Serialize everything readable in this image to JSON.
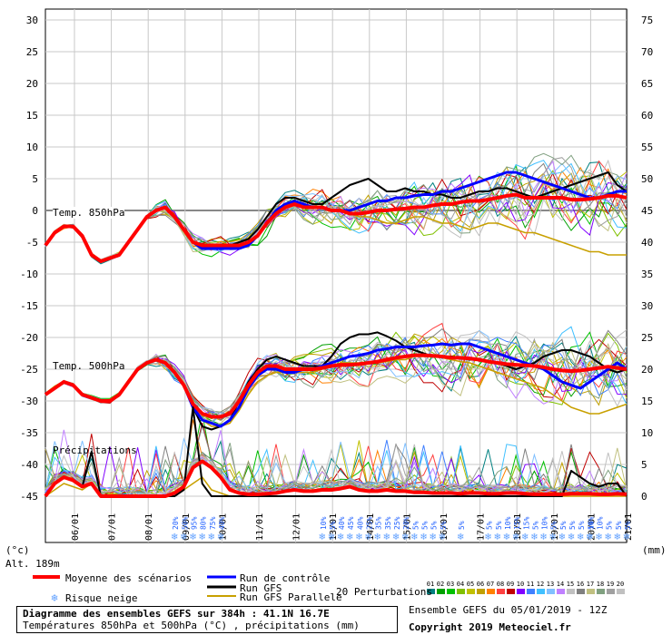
{
  "chart_data": {
    "type": "line",
    "title": "Diagramme des ensembles GEFS sur 384h : 41.1N 16.7E",
    "subtitle": "Températures 850hPa et 500hPa (°C) , précipitations (mm)",
    "left_axis_unit": "(°c)",
    "right_axis_unit": "(mm)",
    "altitude": "Alt. 189m",
    "left_ticks": [
      "30",
      "25",
      "20",
      "15",
      "10",
      "5",
      "0",
      "-5",
      "-10",
      "-15",
      "-20",
      "-25",
      "-30",
      "-35",
      "-40",
      "-45"
    ],
    "right_ticks": [
      "75",
      "70",
      "65",
      "60",
      "55",
      "50",
      "45",
      "40",
      "35",
      "30",
      "25",
      "20",
      "15",
      "10",
      "5",
      "0"
    ],
    "ylim_temp": [
      -45,
      30
    ],
    "ylim_precip": [
      0,
      75
    ],
    "date_labels": [
      "06/01",
      "07/01",
      "08/01",
      "09/01",
      "10/01",
      "11/01",
      "12/01",
      "13/01",
      "14/01",
      "15/01",
      "16/01",
      "17/01",
      "18/01",
      "19/01",
      "20/01",
      "21/01"
    ],
    "section_labels": {
      "t850": "Temp. 850hPa",
      "t500": "Temp. 500hPa",
      "precip": "Précipitations"
    },
    "x_steps": 64,
    "series": [
      {
        "name": "Moyenne des scénarios",
        "kind": "t850",
        "color": "#ff0000",
        "values": [
          -5.5,
          -3.5,
          -2.5,
          -2.5,
          -4,
          -7,
          -8,
          -7.5,
          -7,
          -5,
          -3,
          -1,
          0,
          0.5,
          -1,
          -3,
          -5,
          -5.5,
          -5.5,
          -5.5,
          -5.5,
          -5.5,
          -5,
          -4,
          -2,
          -0.5,
          0.5,
          1,
          0.5,
          0.5,
          0.5,
          0,
          0,
          -0.5,
          -0.5,
          -0.3,
          0,
          0,
          0.2,
          0.3,
          0.5,
          0.5,
          0.8,
          1,
          1,
          1.3,
          1.5,
          1.5,
          1.7,
          2,
          2.3,
          2.5,
          2,
          2,
          2,
          2,
          2,
          1.7,
          1.7,
          1.8,
          2,
          2.3,
          2.3,
          2
        ]
      },
      {
        "name": "Run de contrôle",
        "kind": "t850",
        "color": "#0000ff",
        "values": [
          -5.5,
          -3.5,
          -2.5,
          -2.5,
          -4,
          -7,
          -8,
          -7.5,
          -7,
          -5,
          -3,
          -1,
          0,
          0.5,
          -1,
          -3,
          -5,
          -6,
          -6,
          -6,
          -6,
          -6,
          -5.5,
          -4,
          -2,
          0,
          1,
          1.5,
          1,
          0.5,
          0.5,
          0,
          0,
          0,
          0.5,
          1,
          1.5,
          1.5,
          2,
          2,
          2.3,
          2.5,
          2.5,
          3,
          3,
          3.5,
          4,
          4.5,
          5,
          5.5,
          6,
          6,
          5.5,
          5,
          4.5,
          4,
          3.5,
          3,
          2.5,
          2,
          2,
          2.5,
          3,
          3
        ]
      },
      {
        "name": "Run GFS",
        "kind": "t850",
        "color": "#000000",
        "values": [
          -5.5,
          -3.5,
          -2.5,
          -2.5,
          -4,
          -7,
          -8,
          -7.5,
          -7,
          -5,
          -3,
          -1,
          0,
          0.5,
          -1,
          -3,
          -5,
          -5.5,
          -5.5,
          -5.5,
          -5.5,
          -5,
          -4.5,
          -3,
          -1,
          1,
          2,
          2,
          1.5,
          1,
          1,
          2,
          3,
          4,
          4.5,
          5,
          4,
          3,
          3,
          3.5,
          3,
          3,
          2.5,
          2.5,
          2,
          2,
          2.5,
          3,
          3,
          3.5,
          3.5,
          3,
          2.5,
          2,
          2.5,
          3,
          3.5,
          4,
          4.5,
          5,
          5.5,
          6,
          4,
          3
        ]
      },
      {
        "name": "Run GFS Parallele",
        "kind": "t850",
        "color": "#c8a000",
        "values": [
          -5.5,
          -3.5,
          -2.5,
          -2.5,
          -4,
          -7,
          -8,
          -7.5,
          -7,
          -5,
          -3,
          -1,
          0,
          0.5,
          -1,
          -3,
          -5,
          -5.5,
          -5.5,
          -6,
          -6,
          -6,
          -5.5,
          -4,
          -2,
          0,
          1,
          1,
          0.5,
          0.5,
          0.5,
          0,
          0,
          -0.5,
          -1,
          -1,
          -1.5,
          -2,
          -2,
          -1.5,
          -1,
          -1,
          -1.5,
          -2,
          -2,
          -2.5,
          -3,
          -2.5,
          -2,
          -2,
          -2.5,
          -3,
          -3.5,
          -3.5,
          -4,
          -4.5,
          -5,
          -5.5,
          -6,
          -6.5,
          -6.5,
          -7,
          -7,
          -7
        ]
      },
      {
        "name": "Moyenne des scénarios",
        "kind": "t500",
        "color": "#ff0000",
        "values": [
          -29,
          -28,
          -27,
          -27.5,
          -29,
          -29.5,
          -30,
          -30,
          -29,
          -27,
          -25,
          -24,
          -23.5,
          -24,
          -25.5,
          -27.5,
          -30.5,
          -32,
          -32.5,
          -32.5,
          -32,
          -30,
          -27.5,
          -25.5,
          -24.5,
          -24.5,
          -25,
          -25,
          -25,
          -25,
          -24.8,
          -24.5,
          -24.3,
          -24.3,
          -24.2,
          -24,
          -23.8,
          -23.5,
          -23.2,
          -23,
          -22.8,
          -22.8,
          -22.9,
          -23,
          -23.2,
          -23.2,
          -23.3,
          -23.5,
          -23.8,
          -24,
          -24.2,
          -24.3,
          -24.4,
          -24.5,
          -24.7,
          -25,
          -25.2,
          -25.3,
          -25.2,
          -25,
          -24.8,
          -24.6,
          -24.8,
          -25
        ]
      },
      {
        "name": "Run de contrôle",
        "kind": "t500",
        "color": "#0000ff",
        "values": [
          -29,
          -28,
          -27,
          -27.5,
          -29,
          -29.5,
          -30,
          -30,
          -29,
          -27,
          -25,
          -24,
          -23.5,
          -24,
          -25.5,
          -27.5,
          -31,
          -33,
          -33.5,
          -34,
          -33,
          -31,
          -28,
          -26,
          -25,
          -25,
          -25.5,
          -25.5,
          -25,
          -25,
          -24.5,
          -24,
          -23.5,
          -23,
          -22.8,
          -22.5,
          -22,
          -21.8,
          -21.5,
          -21.5,
          -21.5,
          -21.3,
          -21.2,
          -21,
          -21.2,
          -21,
          -21,
          -21.5,
          -22,
          -22.5,
          -23,
          -23.5,
          -24,
          -24.5,
          -25,
          -26,
          -27,
          -27.5,
          -28,
          -27,
          -26,
          -25,
          -24,
          -25
        ]
      },
      {
        "name": "Run GFS",
        "kind": "t500",
        "color": "#000000",
        "values": [
          -29,
          -28,
          -27,
          -27.5,
          -29,
          -29.5,
          -30,
          -30,
          -29,
          -27,
          -25,
          -24,
          -23.5,
          -24,
          -25.5,
          -27.5,
          -31,
          -34,
          -34.5,
          -34,
          -33,
          -30,
          -27,
          -25,
          -23.5,
          -23,
          -23.5,
          -24,
          -24.5,
          -24.5,
          -24.5,
          -23,
          -21,
          -20,
          -19.5,
          -19.5,
          -19.2,
          -19.8,
          -20.5,
          -21.5,
          -22,
          -22.5,
          -23,
          -23,
          -23,
          -23.2,
          -23.5,
          -23.5,
          -23.8,
          -24,
          -24.5,
          -25,
          -24.5,
          -24,
          -23,
          -22.5,
          -22,
          -22,
          -22.5,
          -23,
          -24,
          -25,
          -25.5,
          -25
        ]
      },
      {
        "name": "Run GFS Parallele",
        "kind": "t500",
        "color": "#c8a000",
        "values": [
          -29,
          -28,
          -27,
          -27.5,
          -29,
          -29.5,
          -30,
          -30,
          -29,
          -27,
          -25,
          -24,
          -23.5,
          -24,
          -25.5,
          -27.5,
          -31,
          -33,
          -34,
          -34,
          -33.5,
          -31.5,
          -29,
          -27,
          -26,
          -25.5,
          -25.5,
          -25.5,
          -25.5,
          -25.5,
          -25,
          -24.5,
          -24,
          -24,
          -24,
          -24,
          -24,
          -23.8,
          -23.5,
          -23.5,
          -23,
          -23,
          -23,
          -23.2,
          -23.5,
          -23.8,
          -24,
          -24.5,
          -25,
          -25.5,
          -26,
          -26.5,
          -27,
          -27.5,
          -28,
          -29,
          -30,
          -31,
          -31.5,
          -32,
          -32,
          -31.5,
          -31,
          -30.5
        ]
      },
      {
        "name": "Moyenne des scénarios",
        "kind": "precip",
        "color": "#ff0000",
        "values": [
          0,
          2,
          3,
          2.5,
          1.5,
          2,
          0,
          0,
          0,
          0,
          0,
          0,
          0,
          0,
          0.5,
          1.5,
          4.5,
          5.5,
          4.5,
          3,
          1,
          0.5,
          0.3,
          0.3,
          0.4,
          0.5,
          0.8,
          1,
          0.8,
          0.8,
          1,
          1,
          1.2,
          1.5,
          1,
          0.8,
          0.8,
          1,
          0.8,
          0.8,
          0.6,
          0.6,
          0.5,
          0.5,
          0.5,
          0.4,
          0.5,
          0.5,
          0.4,
          0.4,
          0.5,
          0.5,
          0.4,
          0.3,
          0.3,
          0.3,
          0.3,
          0.4,
          0.4,
          0.4,
          0.3,
          0.3,
          0.4,
          0.3
        ]
      },
      {
        "name": "Run GFS",
        "kind": "precip",
        "color": "#000000",
        "values": [
          0,
          2,
          3,
          2.5,
          1.5,
          7,
          0,
          0,
          0,
          0,
          0,
          0,
          0,
          0,
          0,
          1,
          14,
          2,
          0,
          0,
          0,
          0,
          0,
          0,
          0,
          0,
          0,
          0,
          0,
          0,
          0,
          0,
          0,
          0,
          0,
          0,
          0,
          0,
          0,
          0,
          0,
          0,
          0,
          0,
          0,
          0,
          0,
          0,
          0,
          0,
          0,
          0,
          0,
          0,
          0,
          0,
          0,
          4,
          3,
          2,
          1.5,
          2,
          2,
          0
        ]
      },
      {
        "name": "Run GFS Parallele",
        "kind": "precip",
        "color": "#c8a000",
        "values": [
          0,
          1,
          2,
          1.5,
          1,
          2,
          0,
          0,
          0,
          0,
          0,
          0,
          0,
          0,
          0,
          1,
          2,
          3,
          1,
          0.5,
          0,
          0,
          0,
          0,
          0,
          0,
          0,
          0,
          0,
          0,
          0,
          0,
          0,
          0,
          0,
          0,
          0,
          0,
          0,
          0,
          0,
          0,
          0,
          0,
          0,
          0,
          0,
          0,
          0,
          0,
          0,
          0,
          0,
          0,
          0,
          0,
          0,
          0,
          0,
          0,
          0,
          0,
          0,
          0
        ]
      }
    ],
    "perturbations_count": 20,
    "snow_risk_labels": [
      {
        "step": 15,
        "text": "20%"
      },
      {
        "step": 16,
        "text": "50%"
      },
      {
        "step": 17,
        "text": "95%"
      },
      {
        "step": 18,
        "text": "80%"
      },
      {
        "step": 19,
        "text": "75%"
      },
      {
        "step": 20,
        "text": "40%"
      },
      {
        "step": 31,
        "text": "10%"
      },
      {
        "step": 32,
        "text": "5%"
      },
      {
        "step": 33,
        "text": "40%"
      },
      {
        "step": 34,
        "text": "45%"
      },
      {
        "step": 35,
        "text": "40%"
      },
      {
        "step": 36,
        "text": "25%"
      },
      {
        "step": 37,
        "text": "35%"
      },
      {
        "step": 38,
        "text": "35%"
      },
      {
        "step": 39,
        "text": "25%"
      },
      {
        "step": 40,
        "text": "20%"
      },
      {
        "step": 41,
        "text": "5%"
      },
      {
        "step": 42,
        "text": "5%"
      },
      {
        "step": 43,
        "text": "5%"
      },
      {
        "step": 44,
        "text": "5%"
      },
      {
        "step": 46,
        "text": "5%"
      },
      {
        "step": 49,
        "text": "5%"
      },
      {
        "step": 50,
        "text": "5%"
      },
      {
        "step": 51,
        "text": "10%"
      },
      {
        "step": 52,
        "text": "15%"
      },
      {
        "step": 53,
        "text": "15%"
      },
      {
        "step": 54,
        "text": "5%"
      },
      {
        "step": 55,
        "text": "10%"
      },
      {
        "step": 56,
        "text": "5%"
      },
      {
        "step": 57,
        "text": "5%"
      },
      {
        "step": 58,
        "text": "5%"
      },
      {
        "step": 59,
        "text": "5%"
      },
      {
        "step": 60,
        "text": "5%"
      },
      {
        "step": 61,
        "text": "10%"
      },
      {
        "step": 60,
        "text": "10%",
        "row": "late"
      },
      {
        "step": 62,
        "text": "5%",
        "row": "late"
      },
      {
        "step": 63,
        "text": "5%",
        "row": "late"
      },
      {
        "step": 64,
        "text": "5%",
        "row": "late"
      }
    ]
  },
  "legend": {
    "mean": "Moyenne des scénarios",
    "control": "Run de contrôle",
    "gfs": "Run GFS",
    "gfs_parallel": "Run GFS Parallele",
    "snow": "Risque neige",
    "perturbations": "20 Perturbations",
    "perturbation_numbers": [
      "01",
      "02",
      "03",
      "04",
      "05",
      "06",
      "07",
      "08",
      "09",
      "10",
      "11",
      "12",
      "13",
      "14",
      "15",
      "16",
      "17",
      "18",
      "19",
      "20"
    ],
    "perturbation_colors": [
      "#008080",
      "#00a000",
      "#00c000",
      "#80c000",
      "#c0c000",
      "#c0a000",
      "#ff8000",
      "#ff4040",
      "#c00000",
      "#8000ff",
      "#4080ff",
      "#40c0ff",
      "#80c0ff",
      "#c080ff",
      "#c0c0c0",
      "#808080",
      "#c0c080",
      "#80a080",
      "#a0a0a0",
      "#c0c0c0"
    ]
  },
  "footer": {
    "title_line1": "Diagramme des ensembles GEFS sur 384h : 41.1N 16.7E",
    "title_line2": "Températures 850hPa et 500hPa (°C) , précipitations (mm)",
    "run_info": "Ensemble GEFS du 05/01/2019 - 12Z",
    "copyright": "Copyright 2019 Meteociel.fr"
  }
}
